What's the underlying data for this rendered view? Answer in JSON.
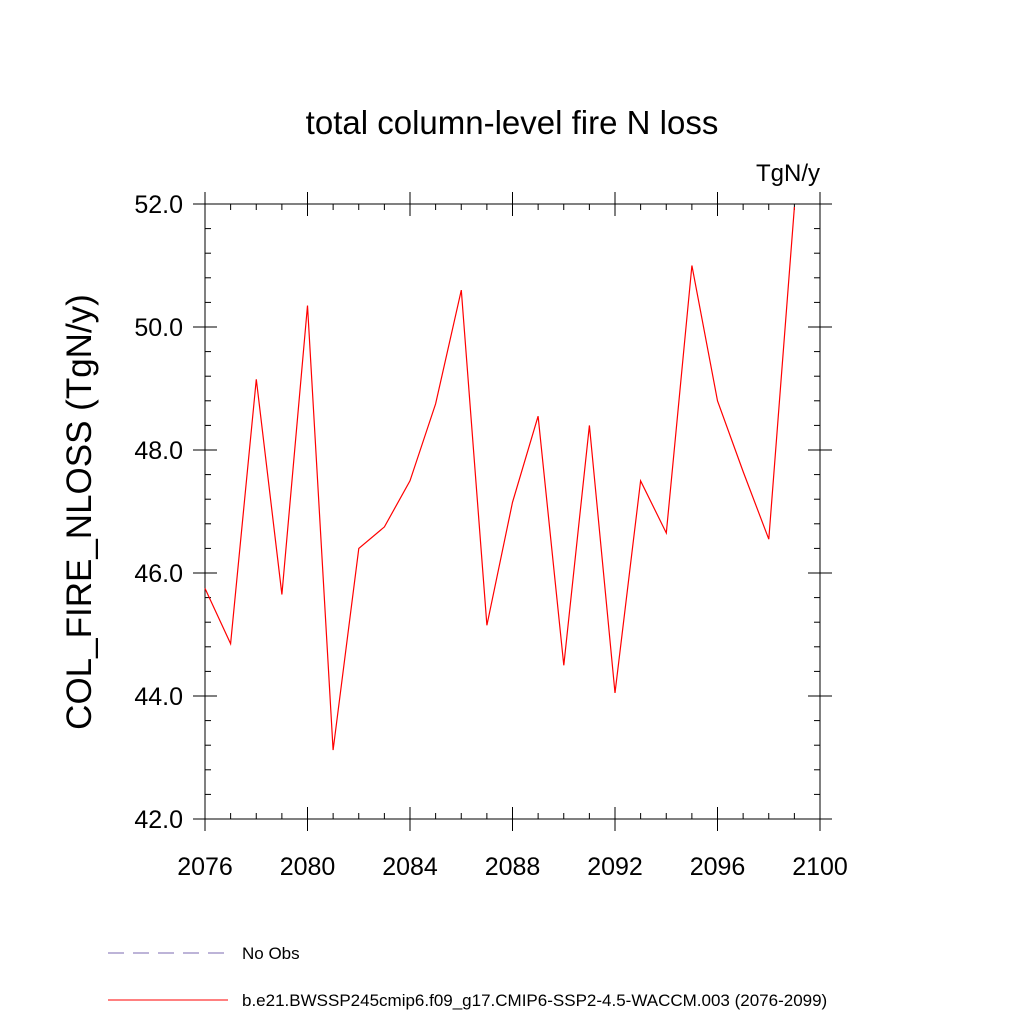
{
  "chart_data": {
    "type": "line",
    "title": "total column-level fire N loss",
    "units": "TgN/y",
    "ylabel": "COL_FIRE_NLOSS  (TgN/y)",
    "xlabel": "",
    "xlim": [
      2076,
      2100
    ],
    "ylim": [
      42.0,
      52.0
    ],
    "x_ticks": [
      2076,
      2080,
      2084,
      2088,
      2092,
      2096,
      2100
    ],
    "y_ticks": [
      "42.0",
      "44.0",
      "46.0",
      "48.0",
      "50.0",
      "52.0"
    ],
    "grid": false,
    "legend_position": "bottom",
    "series": [
      {
        "name": "b.e21.BWSSP245cmip6.f09_g17.CMIP6-SSP2-4.5-WACCM.003 (2076-2099)",
        "color": "#ff0000",
        "style": "solid",
        "x": [
          2076,
          2077,
          2078,
          2079,
          2080,
          2081,
          2082,
          2083,
          2084,
          2085,
          2086,
          2087,
          2088,
          2089,
          2090,
          2091,
          2092,
          2093,
          2094,
          2095,
          2096,
          2097,
          2098,
          2099
        ],
        "values": [
          45.75,
          44.85,
          49.15,
          45.65,
          50.35,
          43.12,
          46.4,
          46.75,
          47.5,
          48.75,
          50.6,
          45.15,
          47.15,
          48.55,
          44.5,
          48.4,
          44.05,
          47.5,
          46.65,
          51.0,
          48.8,
          47.65,
          46.55,
          51.95
        ]
      }
    ],
    "legend": [
      {
        "label": "No Obs",
        "color": "#7b68b0",
        "style": "dashed"
      },
      {
        "label": "b.e21.BWSSP245cmip6.f09_g17.CMIP6-SSP2-4.5-WACCM.003 (2076-2099)",
        "color": "#ff0000",
        "style": "solid"
      }
    ]
  }
}
